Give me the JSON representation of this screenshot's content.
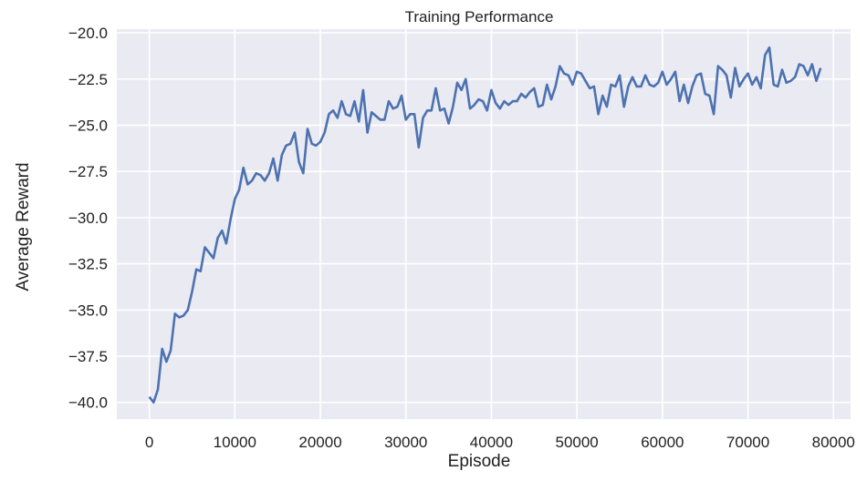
{
  "chart_data": {
    "type": "line",
    "title": "Training Performance",
    "xlabel": "Episode",
    "ylabel": "Average Reward",
    "xlim": [
      -3800,
      82000
    ],
    "ylim": [
      -40.9,
      -19.8
    ],
    "xticks": [
      0,
      10000,
      20000,
      30000,
      40000,
      50000,
      60000,
      70000,
      80000
    ],
    "xtick_labels": [
      "0",
      "10000",
      "20000",
      "30000",
      "40000",
      "50000",
      "60000",
      "70000",
      "80000"
    ],
    "yticks": [
      -40.0,
      -37.5,
      -35.0,
      -32.5,
      -30.0,
      -27.5,
      -25.0,
      -22.5,
      -20.0
    ],
    "ytick_labels": [
      "−40.0",
      "−37.5",
      "−35.0",
      "−32.5",
      "−30.0",
      "−27.5",
      "−25.0",
      "−22.5",
      "−20.0"
    ],
    "grid": true,
    "background_color": "#eaeaf2",
    "line_color": "#4c72b0",
    "series": [
      {
        "name": "",
        "x": [
          0,
          500,
          1000,
          1500,
          2000,
          2500,
          3000,
          3500,
          4000,
          4500,
          5000,
          5500,
          6000,
          6500,
          7000,
          7500,
          8000,
          8500,
          9000,
          9500,
          10000,
          10500,
          11000,
          11500,
          12000,
          12500,
          13000,
          13500,
          14000,
          14500,
          15000,
          15500,
          16000,
          16500,
          17000,
          17500,
          18000,
          18500,
          19000,
          19500,
          20000,
          20500,
          21000,
          21500,
          22000,
          22500,
          23000,
          23500,
          24000,
          24500,
          25000,
          25500,
          26000,
          26500,
          27000,
          27500,
          28000,
          28500,
          29000,
          29500,
          30000,
          30500,
          31000,
          31500,
          32000,
          32500,
          33000,
          33500,
          34000,
          34500,
          35000,
          35500,
          36000,
          36500,
          37000,
          37500,
          38000,
          38500,
          39000,
          39500,
          40000,
          40500,
          41000,
          41500,
          42000,
          42500,
          43000,
          43500,
          44000,
          44500,
          45000,
          45500,
          46000,
          46500,
          47000,
          47500,
          48000,
          48500,
          49000,
          49500,
          50000,
          50500,
          51000,
          51500,
          52000,
          52500,
          53000,
          53500,
          54000,
          54500,
          55000,
          55500,
          56000,
          56500,
          57000,
          57500,
          58000,
          58500,
          59000,
          59500,
          60000,
          60500,
          61000,
          61500,
          62000,
          62500,
          63000,
          63500,
          64000,
          64500,
          65000,
          65500,
          66000,
          66500,
          67000,
          67500,
          68000,
          68500,
          69000,
          69500,
          70000,
          70500,
          71000,
          71500,
          72000,
          72500,
          73000,
          73500,
          74000,
          74500,
          75000,
          75500,
          76000,
          76500,
          77000,
          77500,
          78000,
          78500
        ],
        "y": [
          -39.7,
          -40.0,
          -39.3,
          -37.1,
          -37.8,
          -37.2,
          -35.2,
          -35.4,
          -35.3,
          -35.0,
          -34.0,
          -32.8,
          -32.9,
          -31.6,
          -31.9,
          -32.2,
          -31.1,
          -30.7,
          -31.4,
          -30.1,
          -29.0,
          -28.5,
          -27.3,
          -28.2,
          -28.0,
          -27.6,
          -27.7,
          -28.0,
          -27.6,
          -26.8,
          -28.0,
          -26.6,
          -26.1,
          -26.0,
          -25.4,
          -27.0,
          -27.6,
          -25.2,
          -26.0,
          -26.1,
          -25.9,
          -25.4,
          -24.4,
          -24.2,
          -24.6,
          -23.7,
          -24.4,
          -24.5,
          -23.7,
          -24.8,
          -23.1,
          -25.4,
          -24.3,
          -24.5,
          -24.7,
          -24.7,
          -23.7,
          -24.1,
          -24.0,
          -23.4,
          -24.7,
          -24.4,
          -24.4,
          -26.2,
          -24.6,
          -24.2,
          -24.2,
          -23.0,
          -24.2,
          -24.1,
          -24.9,
          -24.0,
          -22.7,
          -23.1,
          -22.5,
          -24.1,
          -23.9,
          -23.6,
          -23.7,
          -24.2,
          -23.1,
          -23.8,
          -24.1,
          -23.7,
          -23.9,
          -23.7,
          -23.7,
          -23.3,
          -23.5,
          -23.2,
          -23.0,
          -24.0,
          -23.9,
          -22.8,
          -23.6,
          -22.9,
          -21.8,
          -22.2,
          -22.3,
          -22.8,
          -22.1,
          -22.2,
          -22.6,
          -23.0,
          -22.9,
          -24.4,
          -23.4,
          -24.0,
          -22.8,
          -22.9,
          -22.3,
          -24.0,
          -22.9,
          -22.4,
          -22.9,
          -22.9,
          -22.3,
          -22.8,
          -22.9,
          -22.7,
          -22.1,
          -22.8,
          -22.5,
          -22.1,
          -23.7,
          -22.8,
          -23.8,
          -22.9,
          -22.3,
          -22.2,
          -23.3,
          -23.4,
          -24.4,
          -21.8,
          -22.0,
          -22.3,
          -23.5,
          -21.9,
          -22.9,
          -22.5,
          -22.2,
          -22.8,
          -22.4,
          -23.0,
          -21.2,
          -20.8,
          -22.8,
          -22.9,
          -22.0,
          -22.7,
          -22.6,
          -22.4,
          -21.7,
          -21.8,
          -22.3,
          -21.7,
          -22.6,
          -21.9
        ]
      }
    ]
  }
}
